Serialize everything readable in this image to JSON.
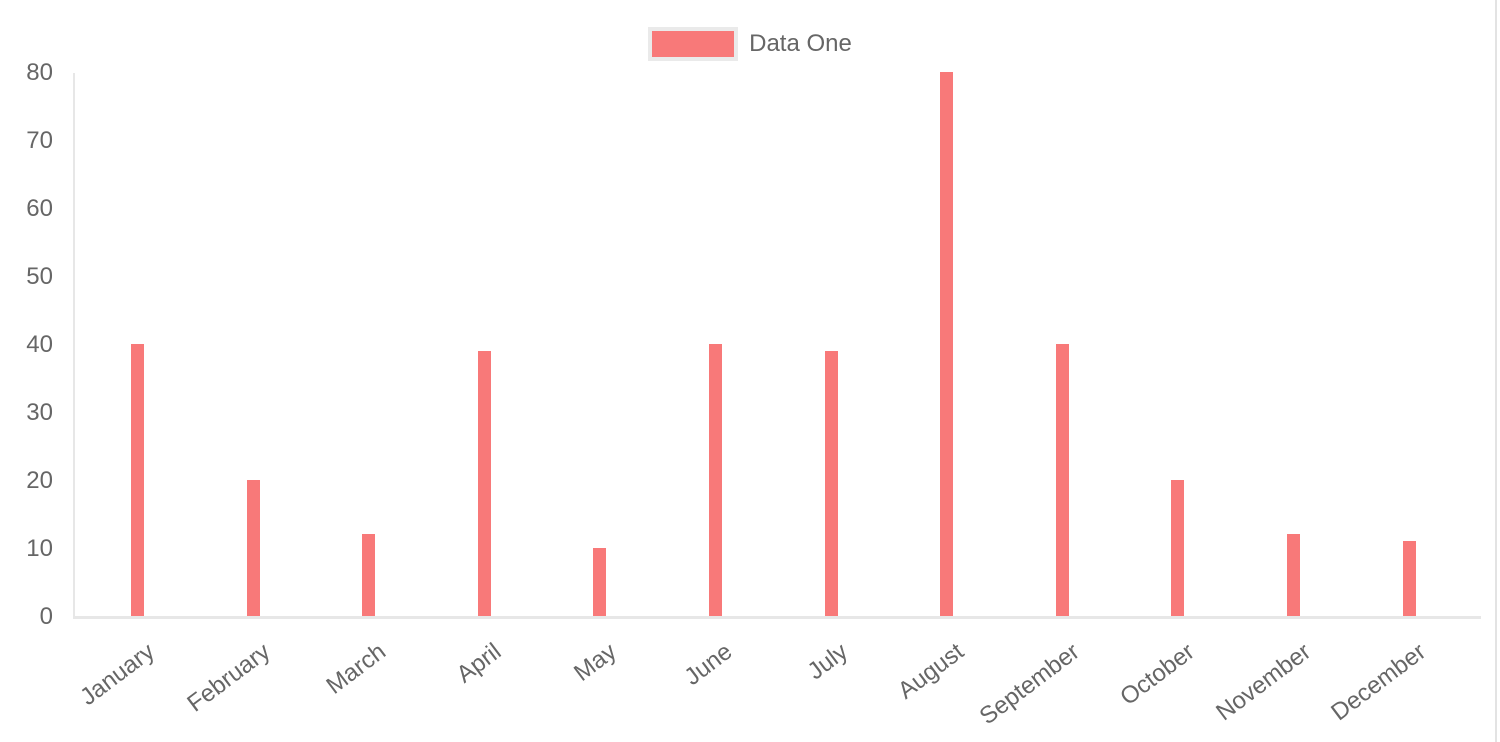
{
  "page": {
    "background": "#ffffff",
    "right_border_color": "#e3e3e3"
  },
  "legend": {
    "label": "Data One",
    "swatch_color": "#f87979",
    "swatch_border_color": "#eaeaea",
    "position": "top"
  },
  "chart_data": {
    "type": "bar",
    "title": "",
    "xlabel": "",
    "ylabel": "",
    "categories": [
      "January",
      "February",
      "March",
      "April",
      "May",
      "June",
      "July",
      "August",
      "September",
      "October",
      "November",
      "December"
    ],
    "series": [
      {
        "name": "Data One",
        "color": "#f87979",
        "values": [
          40,
          20,
          12,
          39,
          10,
          40,
          39,
          80,
          40,
          20,
          12,
          11
        ]
      }
    ],
    "ylim": [
      0,
      80
    ],
    "yticks": [
      0,
      10,
      20,
      30,
      40,
      50,
      60,
      70,
      80
    ],
    "grid": false,
    "legend_position": "top",
    "axis_color": "#e7e7e7",
    "tick_text_color": "#666666"
  }
}
